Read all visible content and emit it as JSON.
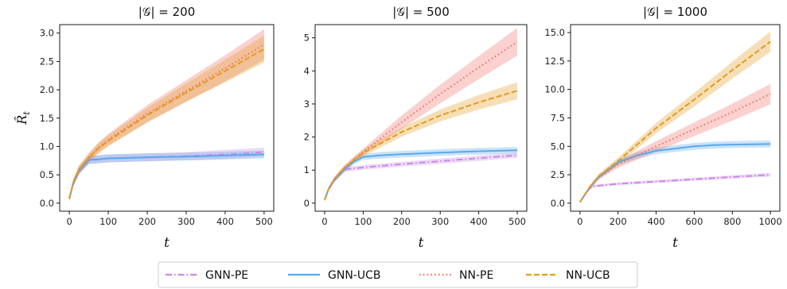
{
  "colors": {
    "GNN-PE": "#c98ae6",
    "GNN-UCB": "#5aa9ea",
    "NN-PE": "#f07068",
    "NN-UCB": "#e39b1e"
  },
  "legend": [
    "GNN-PE",
    "GNN-UCB",
    "NN-PE",
    "NN-UCB"
  ],
  "chart_data": [
    {
      "type": "line",
      "title": "|𝒢| = 200",
      "xlabel": "t",
      "ylabel": "R̂_t",
      "xlim": [
        0,
        500
      ],
      "ylim": [
        0,
        3.15
      ],
      "xticks": [
        0,
        100,
        200,
        300,
        400,
        500
      ],
      "yticks": [
        0.0,
        0.5,
        1.0,
        1.5,
        2.0,
        2.5,
        3.0
      ],
      "tick_labels_x": [
        "0",
        "100",
        "200",
        "300",
        "400",
        "500"
      ],
      "tick_labels_y": [
        "0.0",
        "0.5",
        "1.0",
        "1.5",
        "2.0",
        "2.5",
        "3.0"
      ],
      "series": [
        {
          "name": "GNN-PE",
          "style": "dashdot",
          "x": [
            0,
            10,
            25,
            50,
            100,
            200,
            300,
            400,
            500
          ],
          "y": [
            0.08,
            0.35,
            0.57,
            0.76,
            0.79,
            0.81,
            0.83,
            0.86,
            0.9
          ],
          "band": [
            0.05,
            0.06,
            0.06,
            0.07,
            0.07,
            0.07,
            0.07,
            0.08,
            0.08
          ]
        },
        {
          "name": "GNN-UCB",
          "style": "solid",
          "x": [
            0,
            10,
            25,
            50,
            100,
            200,
            300,
            400,
            500
          ],
          "y": [
            0.08,
            0.35,
            0.57,
            0.76,
            0.79,
            0.81,
            0.82,
            0.84,
            0.86
          ],
          "band": [
            0.05,
            0.06,
            0.06,
            0.07,
            0.07,
            0.07,
            0.07,
            0.07,
            0.07
          ]
        },
        {
          "name": "NN-PE",
          "style": "dotted",
          "x": [
            0,
            10,
            25,
            50,
            75,
            100,
            200,
            300,
            400,
            500
          ],
          "y": [
            0.08,
            0.36,
            0.59,
            0.8,
            0.98,
            1.12,
            1.58,
            1.98,
            2.38,
            2.8
          ],
          "band": [
            0.05,
            0.06,
            0.07,
            0.08,
            0.09,
            0.1,
            0.15,
            0.19,
            0.23,
            0.27
          ]
        },
        {
          "name": "NN-UCB",
          "style": "dashed",
          "x": [
            0,
            10,
            25,
            50,
            75,
            100,
            200,
            300,
            400,
            500
          ],
          "y": [
            0.08,
            0.36,
            0.59,
            0.8,
            0.97,
            1.1,
            1.55,
            1.95,
            2.33,
            2.72
          ],
          "band": [
            0.05,
            0.06,
            0.07,
            0.08,
            0.09,
            0.1,
            0.13,
            0.16,
            0.2,
            0.24
          ]
        }
      ]
    },
    {
      "type": "line",
      "title": "|𝒢| = 500",
      "xlabel": "t",
      "ylabel": "",
      "xlim": [
        0,
        500
      ],
      "ylim": [
        0,
        5.4
      ],
      "xticks": [
        0,
        100,
        200,
        300,
        400,
        500
      ],
      "yticks": [
        0,
        1,
        2,
        3,
        4,
        5
      ],
      "tick_labels_x": [
        "0",
        "100",
        "200",
        "300",
        "400",
        "500"
      ],
      "tick_labels_y": [
        "0",
        "1",
        "2",
        "3",
        "4",
        "5"
      ],
      "series": [
        {
          "name": "GNN-PE",
          "style": "dashdot",
          "x": [
            0,
            10,
            25,
            50,
            60,
            100,
            200,
            300,
            400,
            500
          ],
          "y": [
            0.1,
            0.42,
            0.7,
            1.0,
            1.03,
            1.08,
            1.18,
            1.27,
            1.36,
            1.45
          ],
          "band": [
            0.05,
            0.06,
            0.07,
            0.07,
            0.07,
            0.07,
            0.07,
            0.08,
            0.08,
            0.08
          ]
        },
        {
          "name": "GNN-UCB",
          "style": "solid",
          "x": [
            0,
            10,
            25,
            50,
            75,
            100,
            150,
            200,
            300,
            400,
            500
          ],
          "y": [
            0.1,
            0.42,
            0.7,
            1.0,
            1.25,
            1.4,
            1.45,
            1.48,
            1.53,
            1.57,
            1.6
          ],
          "band": [
            0.05,
            0.06,
            0.07,
            0.07,
            0.08,
            0.09,
            0.1,
            0.1,
            0.1,
            0.1,
            0.1
          ]
        },
        {
          "name": "NN-PE",
          "style": "dotted",
          "x": [
            0,
            10,
            25,
            50,
            75,
            100,
            200,
            300,
            400,
            500
          ],
          "y": [
            0.1,
            0.42,
            0.72,
            1.05,
            1.3,
            1.55,
            2.45,
            3.3,
            4.1,
            4.88
          ],
          "band": [
            0.05,
            0.06,
            0.07,
            0.08,
            0.09,
            0.1,
            0.2,
            0.28,
            0.35,
            0.42
          ]
        },
        {
          "name": "NN-UCB",
          "style": "dashed",
          "x": [
            0,
            10,
            25,
            50,
            75,
            100,
            200,
            300,
            400,
            500
          ],
          "y": [
            0.1,
            0.42,
            0.72,
            1.05,
            1.3,
            1.52,
            2.15,
            2.65,
            3.05,
            3.4
          ],
          "band": [
            0.05,
            0.06,
            0.07,
            0.08,
            0.09,
            0.1,
            0.14,
            0.18,
            0.22,
            0.26
          ]
        }
      ]
    },
    {
      "type": "line",
      "title": "|𝒢| = 1000",
      "xlabel": "t",
      "ylabel": "",
      "xlim": [
        0,
        1000
      ],
      "ylim": [
        0,
        15.7
      ],
      "xticks": [
        0,
        200,
        400,
        600,
        800,
        1000
      ],
      "yticks": [
        0.0,
        2.5,
        5.0,
        7.5,
        10.0,
        12.5,
        15.0
      ],
      "tick_labels_x": [
        "0",
        "200",
        "400",
        "600",
        "800",
        "1000"
      ],
      "tick_labels_y": [
        "0.0",
        "2.5",
        "5.0",
        "7.5",
        "10.0",
        "12.5",
        "15.0"
      ],
      "series": [
        {
          "name": "GNN-PE",
          "style": "dashdot",
          "x": [
            0,
            20,
            50,
            75,
            200,
            400,
            600,
            800,
            1000
          ],
          "y": [
            0.1,
            0.6,
            1.3,
            1.5,
            1.7,
            1.9,
            2.1,
            2.3,
            2.5
          ],
          "band": [
            0.1,
            0.1,
            0.12,
            0.12,
            0.12,
            0.13,
            0.14,
            0.15,
            0.16
          ]
        },
        {
          "name": "GNN-UCB",
          "style": "solid",
          "x": [
            0,
            20,
            50,
            100,
            200,
            300,
            400,
            500,
            600,
            700,
            800,
            900,
            1000
          ],
          "y": [
            0.1,
            0.6,
            1.35,
            2.3,
            3.6,
            4.2,
            4.6,
            4.8,
            5.0,
            5.1,
            5.15,
            5.18,
            5.2
          ],
          "band": [
            0.1,
            0.1,
            0.15,
            0.2,
            0.25,
            0.3,
            0.3,
            0.3,
            0.3,
            0.3,
            0.3,
            0.3,
            0.3
          ]
        },
        {
          "name": "NN-PE",
          "style": "dotted",
          "x": [
            0,
            20,
            50,
            100,
            200,
            400,
            600,
            800,
            1000
          ],
          "y": [
            0.1,
            0.6,
            1.35,
            2.3,
            3.4,
            5.0,
            6.5,
            8.0,
            9.6
          ],
          "band": [
            0.1,
            0.1,
            0.15,
            0.2,
            0.3,
            0.45,
            0.6,
            0.75,
            0.9
          ]
        },
        {
          "name": "NN-UCB",
          "style": "dashed",
          "x": [
            0,
            20,
            50,
            100,
            200,
            400,
            600,
            800,
            1000
          ],
          "y": [
            0.1,
            0.6,
            1.4,
            2.4,
            3.7,
            6.6,
            9.1,
            11.7,
            14.2
          ],
          "band": [
            0.1,
            0.1,
            0.15,
            0.2,
            0.3,
            0.45,
            0.6,
            0.75,
            0.9
          ]
        }
      ]
    }
  ]
}
